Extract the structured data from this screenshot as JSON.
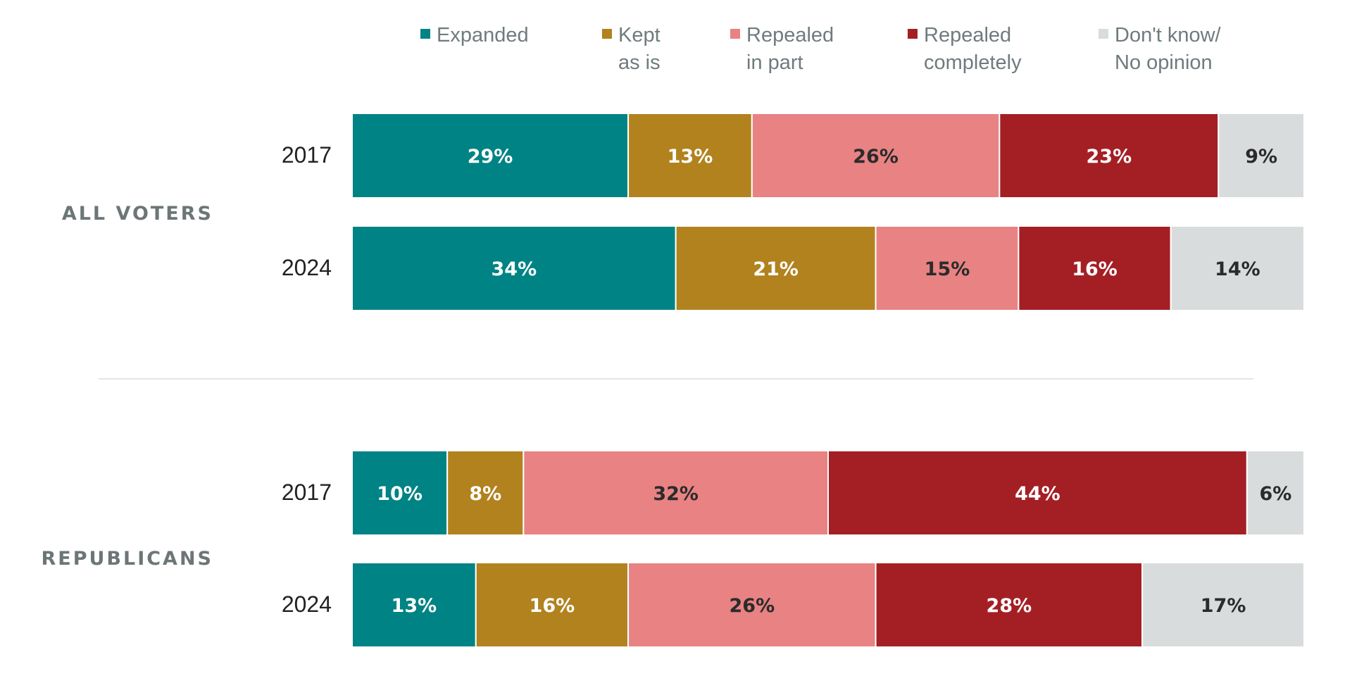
{
  "chart_data": {
    "type": "bar",
    "orientation": "horizontal",
    "stacked": true,
    "xlim": [
      0,
      100
    ],
    "legend_position": "top",
    "series": [
      {
        "name": "Expanded",
        "legend_lines": [
          "Expanded"
        ],
        "color": "#008384",
        "text_color": "#ffffff"
      },
      {
        "name": "Kept as is",
        "legend_lines": [
          "Kept",
          "as is"
        ],
        "color": "#b1821e",
        "text_color": "#ffffff"
      },
      {
        "name": "Repealed in part",
        "legend_lines": [
          "Repealed",
          "in part"
        ],
        "color": "#e88283",
        "text_color": "#2b2b2b"
      },
      {
        "name": "Repealed completely",
        "legend_lines": [
          "Repealed",
          "completely"
        ],
        "color": "#a41f24",
        "text_color": "#ffffff"
      },
      {
        "name": "Don't know/ No opinion",
        "legend_lines": [
          "Don't know/",
          "No opinion"
        ],
        "color": "#d9dcdc",
        "text_color": "#2b2b2b"
      }
    ],
    "groups": [
      {
        "label": "ALL VOTERS",
        "rows": [
          {
            "year": "2017",
            "values": [
              29,
              13,
              26,
              23,
              9
            ],
            "labels": [
              "29%",
              "13%",
              "26%",
              "23%",
              "9%"
            ]
          },
          {
            "year": "2024",
            "values": [
              34,
              21,
              15,
              16,
              14
            ],
            "labels": [
              "34%",
              "21%",
              "15%",
              "16%",
              "14%"
            ]
          }
        ]
      },
      {
        "label": "REPUBLICANS",
        "rows": [
          {
            "year": "2017",
            "values": [
              10,
              8,
              32,
              44,
              6
            ],
            "labels": [
              "10%",
              "8%",
              "32%",
              "44%",
              "6%"
            ]
          },
          {
            "year": "2024",
            "values": [
              13,
              16,
              26,
              28,
              17
            ],
            "labels": [
              "13%",
              "16%",
              "26%",
              "28%",
              "17%"
            ]
          }
        ]
      }
    ]
  }
}
